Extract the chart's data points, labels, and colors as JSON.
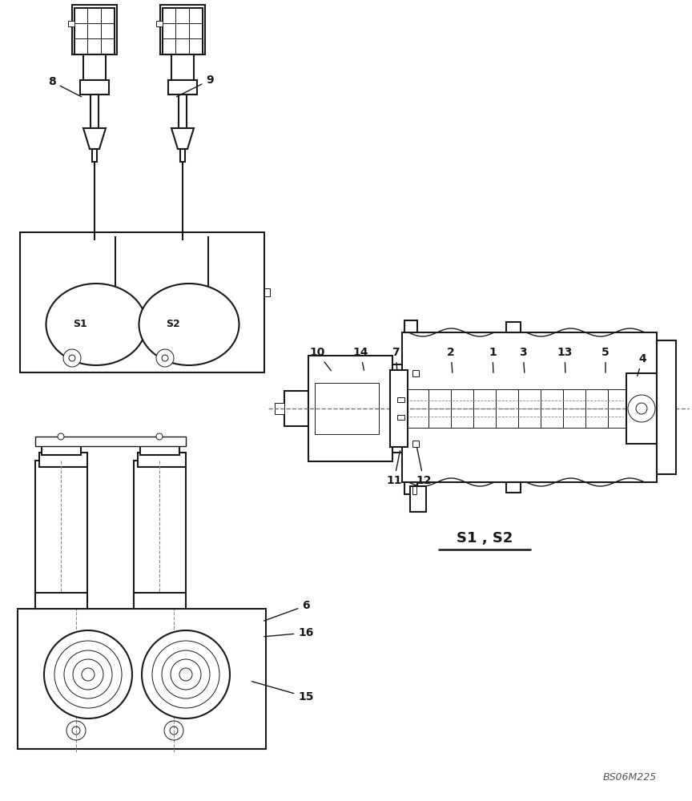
{
  "bg_color": "#ffffff",
  "line_color": "#1a1a1a",
  "text_color": "#1a1a1a",
  "watermark": "BS06M225",
  "label_s1s2": "S1 , S2"
}
